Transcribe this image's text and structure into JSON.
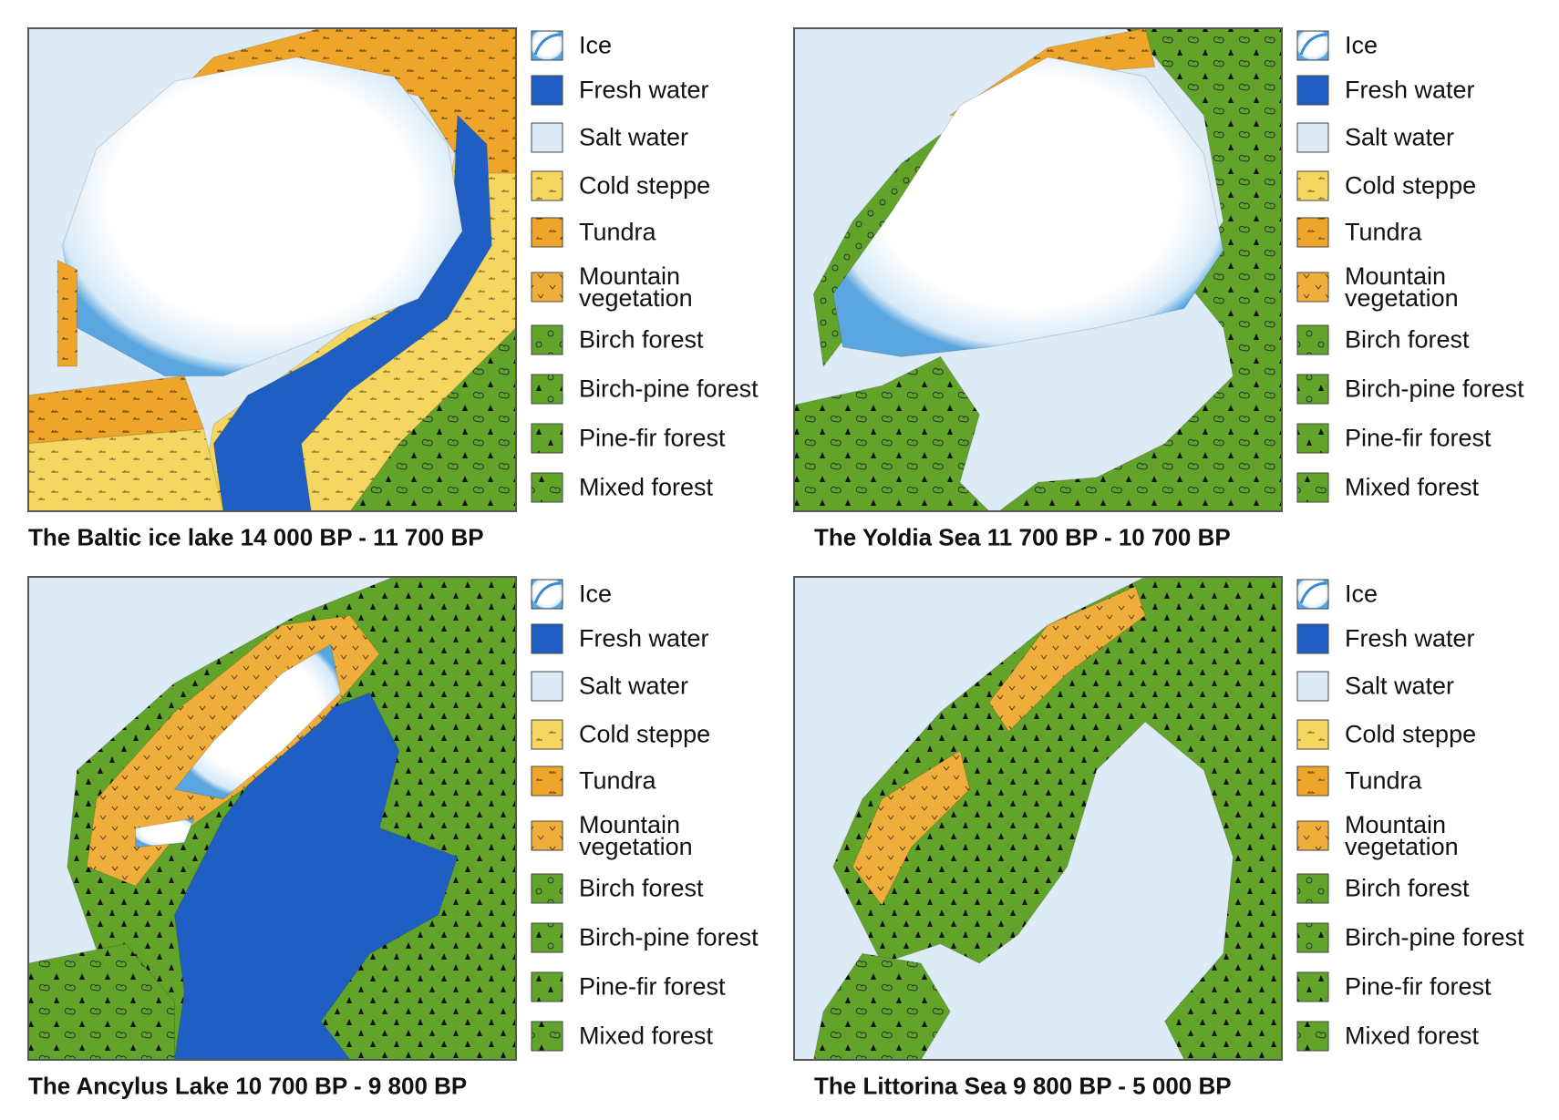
{
  "panels": [
    {
      "title": "The Baltic ice lake 14 000 BP - 11 700 BP",
      "legend": [
        "Ice",
        "Fresh water",
        "Salt water",
        "Cold steppe",
        "Tundra",
        "Mountain vegetation",
        "Birch forest",
        "Birch-pine forest",
        "Pine-fir forest",
        "Mixed forest"
      ]
    },
    {
      "title": "The Yoldia Sea 11 700 BP - 10 700 BP",
      "legend": [
        "Ice",
        "Fresh water",
        "Salt water",
        "Cold steppe",
        "Tundra",
        "Mountain vegetation",
        "Birch forest",
        "Birch-pine forest",
        "Pine-fir forest",
        "Mixed forest"
      ]
    },
    {
      "title": "The Ancylus Lake 10 700 BP - 9 800 BP",
      "legend": [
        "Ice",
        "Fresh water",
        "Salt water",
        "Cold steppe",
        "Tundra",
        "Mountain vegetation",
        "Birch forest",
        "Birch-pine forest",
        "Pine-fir forest",
        "Mixed forest"
      ]
    },
    {
      "title": "The Littorina Sea 9 800 BP - 5 000 BP",
      "legend": [
        "Ice",
        "Fresh water",
        "Salt water",
        "Cold steppe",
        "Tundra",
        "Mountain vegetation",
        "Birch forest",
        "Birch-pine forest",
        "Pine-fir forest",
        "Mixed forest"
      ]
    }
  ]
}
